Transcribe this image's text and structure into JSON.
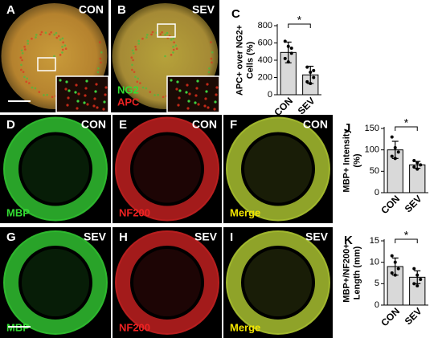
{
  "panels": [
    {
      "letter": "A",
      "condition": "CON",
      "channels": []
    },
    {
      "letter": "B",
      "condition": "SEV",
      "channels": [
        {
          "text": "NG2",
          "color": "#33dd33"
        },
        {
          "text": "APC",
          "color": "#ee2222"
        }
      ]
    },
    {
      "letter": "D",
      "condition": "CON",
      "channels": [
        {
          "text": "MBP",
          "color": "#33dd33"
        }
      ]
    },
    {
      "letter": "E",
      "condition": "CON",
      "channels": [
        {
          "text": "NF200",
          "color": "#ee2222"
        }
      ]
    },
    {
      "letter": "F",
      "condition": "CON",
      "channels": [
        {
          "text": "Merge",
          "color": "#f2e400"
        }
      ]
    },
    {
      "letter": "G",
      "condition": "SEV",
      "channels": [
        {
          "text": "MBP",
          "color": "#33dd33"
        }
      ]
    },
    {
      "letter": "H",
      "condition": "SEV",
      "channels": [
        {
          "text": "NF200",
          "color": "#ee2222"
        }
      ]
    },
    {
      "letter": "I",
      "condition": "SEV",
      "channels": [
        {
          "text": "Merge",
          "color": "#f2e400"
        }
      ]
    }
  ],
  "chart_data": [
    {
      "type": "bar",
      "panel": "C",
      "ylabel": [
        "APC+ over NG2+",
        "Cells (%)"
      ],
      "categories": [
        "CON",
        "SEV"
      ],
      "values": [
        490,
        230
      ],
      "errors": [
        120,
        100
      ],
      "points": [
        [
          620,
          560,
          480,
          420,
          380,
          540
        ],
        [
          320,
          260,
          200,
          150,
          130,
          280
        ]
      ],
      "color": "#d9d9d9",
      "ylim": [
        0,
        800
      ],
      "yticks": [
        0,
        200,
        400,
        600,
        800
      ],
      "annotation": "*"
    },
    {
      "type": "bar",
      "panel": "J",
      "ylabel": [
        "MBP+ Intensity",
        "(%)"
      ],
      "categories": [
        "CON",
        "SEV"
      ],
      "values": [
        100,
        65
      ],
      "errors": [
        20,
        8
      ],
      "points": [
        [
          130,
          105,
          95,
          85,
          80
        ],
        [
          75,
          70,
          65,
          60,
          55
        ]
      ],
      "color": "#d9d9d9",
      "ylim": [
        0,
        150
      ],
      "yticks": [
        0,
        50,
        100,
        150
      ],
      "annotation": "*"
    },
    {
      "type": "bar",
      "panel": "K",
      "ylabel": [
        "MBP+/NF200+",
        "Length (mm)"
      ],
      "categories": [
        "CON",
        "SEV"
      ],
      "values": [
        9,
        6.5
      ],
      "errors": [
        2,
        1.5
      ],
      "points": [
        [
          11.5,
          10,
          8.5,
          7.5,
          7
        ],
        [
          8.5,
          7,
          6,
          5,
          4.5
        ]
      ],
      "color": "#d9d9d9",
      "ylim": [
        0,
        15
      ],
      "yticks": [
        0,
        5,
        10,
        15
      ],
      "annotation": "*"
    }
  ]
}
